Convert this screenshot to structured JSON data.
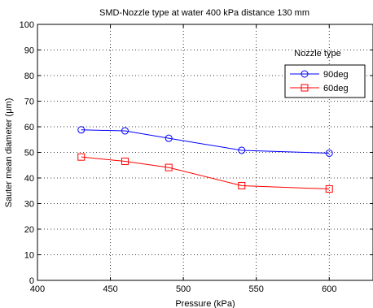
{
  "chart_data": {
    "type": "line",
    "title": "SMD-Nozzle type at water 400 kPa distance 130 mm",
    "xlabel": "Pressure (kPa)",
    "ylabel": "Sauter mean diameter (μm)",
    "xlim": [
      400,
      630
    ],
    "ylim": [
      0,
      100
    ],
    "xticks": [
      400,
      450,
      500,
      550,
      600
    ],
    "yticks": [
      0,
      10,
      20,
      30,
      40,
      50,
      60,
      70,
      80,
      90,
      100
    ],
    "grid": true,
    "legend": {
      "title": "Nozzle type",
      "placement": "top-right"
    },
    "series": [
      {
        "name": "90deg",
        "color": "#0000ff",
        "marker": "circle",
        "x": [
          430,
          460,
          490,
          540,
          600
        ],
        "y": [
          58.8,
          58.4,
          55.5,
          50.8,
          49.7
        ]
      },
      {
        "name": "60deg",
        "color": "#ff0000",
        "marker": "square",
        "x": [
          430,
          460,
          490,
          540,
          600
        ],
        "y": [
          48.2,
          46.5,
          44.1,
          37.0,
          35.7
        ]
      }
    ]
  }
}
